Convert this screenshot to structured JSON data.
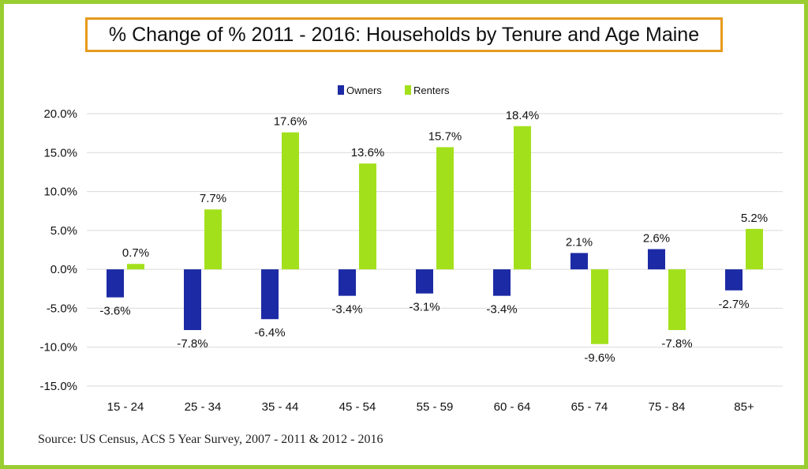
{
  "title": "% Change of % 2011 - 2016: Households by Tenure and Age Maine",
  "source": "Source:  US Census, ACS 5 Year Survey, 2007 - 2011 & 2012 - 2016",
  "colors": {
    "owners": "#1c2aa5",
    "renters": "#a3e01c",
    "frame": "#9acd32",
    "title_border": "#e69b1e",
    "grid": "#d9d9d9"
  },
  "chart_data": {
    "type": "bar",
    "categories": [
      "15 - 24",
      "25 - 34",
      "35 - 44",
      "45 - 54",
      "55 - 59",
      "60 - 64",
      "65 - 74",
      "75 - 84",
      "85+"
    ],
    "series": [
      {
        "name": "Owners",
        "values": [
          -3.6,
          -7.8,
          -6.4,
          -3.4,
          -3.1,
          -3.4,
          2.1,
          2.6,
          -2.7
        ]
      },
      {
        "name": "Renters",
        "values": [
          0.7,
          7.7,
          17.6,
          13.6,
          15.7,
          18.4,
          -9.6,
          -7.8,
          5.2
        ]
      }
    ],
    "yticks": [
      "-15.0%",
      "-10.0%",
      "-5.0%",
      "0.0%",
      "5.0%",
      "10.0%",
      "15.0%",
      "20.0%"
    ],
    "ylim": [
      -15,
      20
    ],
    "grid": true,
    "legend": "top-center",
    "unit_suffix": "%"
  }
}
